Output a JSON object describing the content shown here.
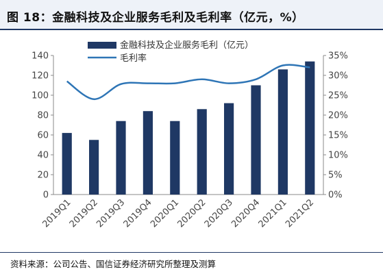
{
  "figure": {
    "title": "图 18：金融科技及企业服务毛利及毛利率（亿元，%）",
    "source": "资料来源：公司公告、国信证券经济研究所整理及测算"
  },
  "chart_data": {
    "type": "bar",
    "categories": [
      "2019Q1",
      "2019Q2",
      "2019Q3",
      "2019Q4",
      "2020Q1",
      "2020Q2",
      "2020Q3",
      "2020Q4",
      "2021Q1",
      "2021Q2"
    ],
    "series": [
      {
        "name": "金融科技及企业服务毛利（亿元）",
        "type": "bar",
        "axis": "left",
        "color": "#1f3864",
        "values": [
          62,
          55,
          74,
          84,
          74,
          86,
          92,
          110,
          126,
          134
        ]
      },
      {
        "name": "毛利率",
        "type": "line",
        "axis": "right",
        "color": "#2e75b6",
        "values": [
          28.5,
          24,
          27.8,
          28,
          28,
          29,
          28,
          29,
          32.5,
          32
        ]
      }
    ],
    "ylim": [
      0,
      140
    ],
    "y_ticks": [
      "0",
      "20",
      "40",
      "60",
      "80",
      "100",
      "120",
      "140"
    ],
    "y2lim": [
      0,
      35
    ],
    "y2_ticks": [
      "0%",
      "5%",
      "10%",
      "15%",
      "20%",
      "25%",
      "30%",
      "35%"
    ],
    "legend_placement": "top-center",
    "grid": false
  }
}
